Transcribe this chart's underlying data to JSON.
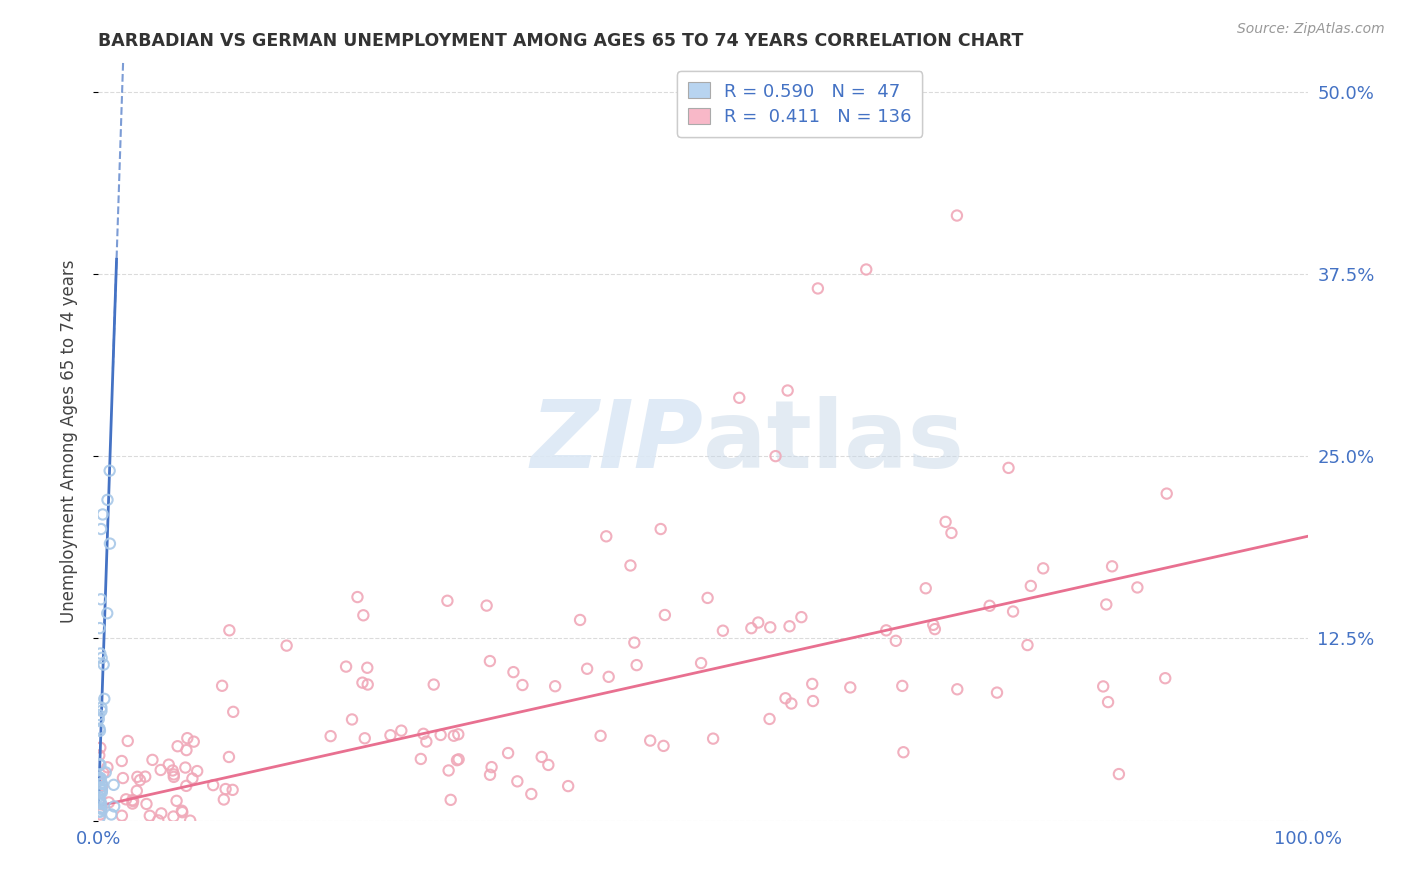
{
  "title": "BARBADIAN VS GERMAN UNEMPLOYMENT AMONG AGES 65 TO 74 YEARS CORRELATION CHART",
  "source": "Source: ZipAtlas.com",
  "ylabel": "Unemployment Among Ages 65 to 74 years",
  "xlim": [
    0.0,
    1.0
  ],
  "ylim": [
    0.0,
    0.52
  ],
  "yticks": [
    0.0,
    0.125,
    0.25,
    0.375,
    0.5
  ],
  "yticklabels": [
    "",
    "12.5%",
    "25.0%",
    "37.5%",
    "50.0%"
  ],
  "grid_color": "#cccccc",
  "background_color": "#ffffff",
  "blue_scatter_color": "#a8c8e8",
  "pink_scatter_color": "#f0a8b8",
  "blue_line_color": "#4472c4",
  "pink_line_color": "#e87090",
  "blue_legend_color": "#b8d4f0",
  "pink_legend_color": "#f8b8c8",
  "tick_label_color": "#4472c4",
  "legend_text_color_dark": "#333333",
  "legend_R_blue": "0.590",
  "legend_N_blue": "47",
  "legend_R_pink": "0.411",
  "legend_N_pink": "136",
  "watermark_color": "#dce8f5"
}
